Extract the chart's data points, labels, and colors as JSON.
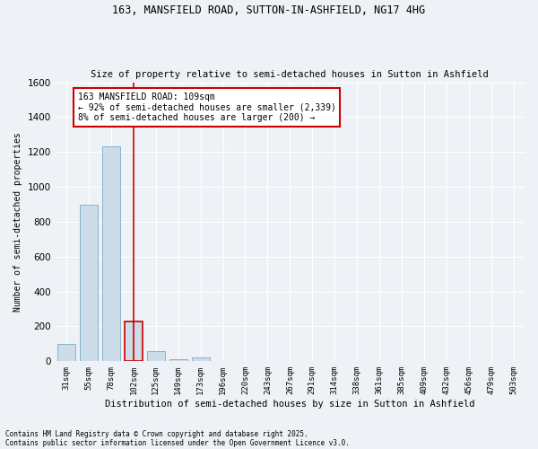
{
  "title1": "163, MANSFIELD ROAD, SUTTON-IN-ASHFIELD, NG17 4HG",
  "title2": "Size of property relative to semi-detached houses in Sutton in Ashfield",
  "xlabel": "Distribution of semi-detached houses by size in Sutton in Ashfield",
  "ylabel": "Number of semi-detached properties",
  "categories": [
    "31sqm",
    "55sqm",
    "78sqm",
    "102sqm",
    "125sqm",
    "149sqm",
    "173sqm",
    "196sqm",
    "220sqm",
    "243sqm",
    "267sqm",
    "291sqm",
    "314sqm",
    "338sqm",
    "361sqm",
    "385sqm",
    "409sqm",
    "432sqm",
    "456sqm",
    "479sqm",
    "503sqm"
  ],
  "values": [
    100,
    900,
    1230,
    230,
    60,
    10,
    20,
    0,
    0,
    0,
    0,
    0,
    0,
    0,
    0,
    0,
    0,
    0,
    0,
    0,
    0
  ],
  "bar_color": "#ccdce8",
  "bar_edge_color": "#7aaac8",
  "highlight_index": 3,
  "highlight_bar_edge_color": "#cc0000",
  "vline_color": "#cc0000",
  "annotation_text": "163 MANSFIELD ROAD: 109sqm\n← 92% of semi-detached houses are smaller (2,339)\n8% of semi-detached houses are larger (200) →",
  "annotation_box_color": "#ffffff",
  "annotation_box_edge_color": "#cc0000",
  "footer1": "Contains HM Land Registry data © Crown copyright and database right 2025.",
  "footer2": "Contains public sector information licensed under the Open Government Licence v3.0.",
  "bg_color": "#eef2f6",
  "plot_bg_color": "#eef2f6",
  "grid_color": "#ffffff",
  "ylim": [
    0,
    1600
  ],
  "yticks": [
    0,
    200,
    400,
    600,
    800,
    1000,
    1200,
    1400,
    1600
  ]
}
